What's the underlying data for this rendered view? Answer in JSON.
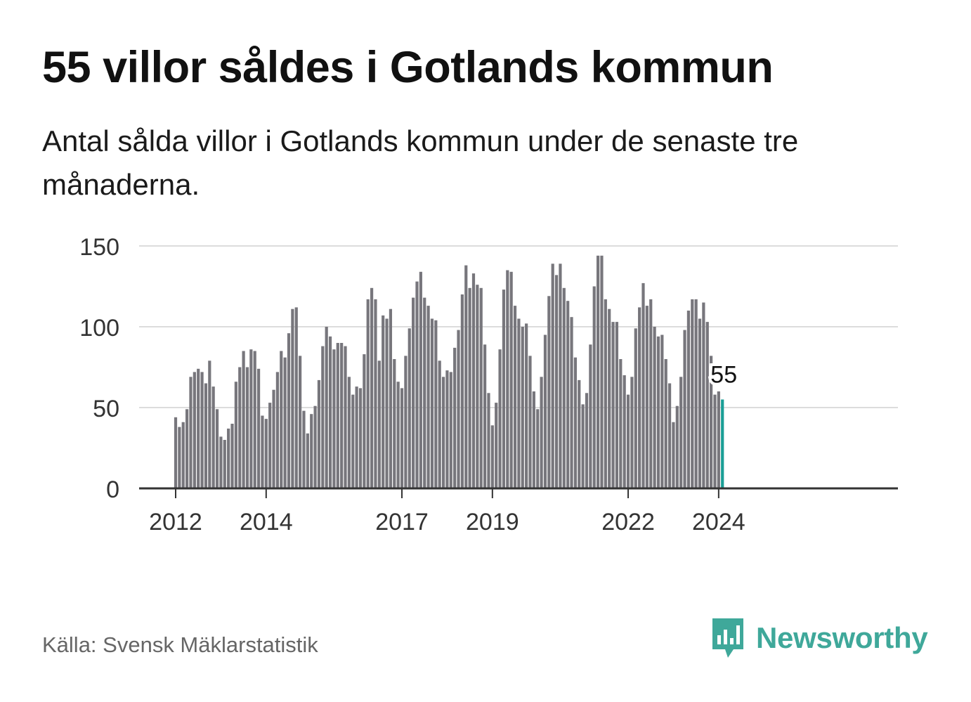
{
  "header": {
    "title": "55 villor såldes i Gotlands kommun",
    "subtitle": "Antal sålda villor i Gotlands kommun under de senaste tre månaderna."
  },
  "footer": {
    "source": "Källa: Svensk Mäklarstatistik",
    "brand": "Newsworthy",
    "brand_icon": "bar-chart-speech-bubble-icon"
  },
  "colors": {
    "bar": "#77767c",
    "highlight": "#1a9e96",
    "grid": "#dcdcdc",
    "axis": "#333333",
    "brand": "#3fa89a"
  },
  "chart_data": {
    "type": "bar",
    "title": "",
    "xlabel": "",
    "ylabel": "",
    "ylim": [
      0,
      150
    ],
    "yticks": [
      0,
      50,
      100,
      150
    ],
    "yticklabels": [
      "0",
      "50",
      "100",
      "150"
    ],
    "xticklabels": [
      "2012",
      "2014",
      "2017",
      "2019",
      "2022",
      "2024"
    ],
    "start_label": "2012-01",
    "end_label": "2024-02",
    "grid": true,
    "highlight_label": "55",
    "values": [
      44,
      38,
      41,
      49,
      69,
      72,
      74,
      72,
      65,
      79,
      63,
      49,
      32,
      30,
      37,
      40,
      66,
      75,
      85,
      75,
      86,
      85,
      74,
      45,
      43,
      53,
      61,
      72,
      85,
      81,
      96,
      111,
      112,
      82,
      48,
      34,
      46,
      51,
      67,
      88,
      100,
      94,
      86,
      90,
      90,
      88,
      69,
      58,
      63,
      62,
      83,
      117,
      124,
      117,
      79,
      107,
      105,
      111,
      80,
      66,
      62,
      82,
      99,
      118,
      128,
      134,
      118,
      113,
      105,
      104,
      79,
      69,
      73,
      72,
      87,
      98,
      120,
      138,
      124,
      133,
      126,
      124,
      89,
      59,
      39,
      53,
      86,
      123,
      135,
      134,
      113,
      105,
      100,
      102,
      82,
      60,
      49,
      69,
      95,
      119,
      139,
      132,
      139,
      124,
      116,
      106,
      81,
      67,
      52,
      59,
      89,
      125,
      144,
      144,
      117,
      111,
      103,
      103,
      80,
      70,
      58,
      69,
      99,
      112,
      127,
      113,
      117,
      100,
      94,
      95,
      80,
      65,
      41,
      51,
      69,
      98,
      110,
      117,
      117,
      105,
      115,
      103,
      82,
      58,
      60,
      55
    ]
  }
}
